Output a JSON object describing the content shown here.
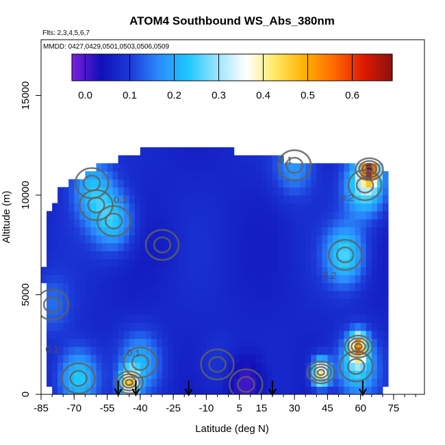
{
  "chart_data": {
    "type": "heatmap",
    "title": "ATOM4 Southbound WS_Abs_380nm",
    "flights_label": "Flts: 2,3,4,5,6,7",
    "dates_label": "MMDD: 0427,0429,0501,0503,0506,0509",
    "xlabel": "Latitude (deg N)",
    "ylabel": "Altitude (m)",
    "xlim": [
      -85,
      89
    ],
    "ylim": [
      0,
      17800
    ],
    "x_ticks": [
      -85,
      -70,
      -55,
      -40,
      -25,
      -10,
      5,
      15,
      30,
      45,
      60,
      75
    ],
    "x_tick_labels": [
      "-85",
      "-70",
      "-55",
      "-40",
      "-25",
      "-10",
      "5",
      "15",
      "30",
      "45",
      "60",
      "75"
    ],
    "y_ticks": [
      0,
      5000,
      10000,
      15000
    ],
    "y_tick_labels": [
      "0",
      "5000",
      "10000",
      "15000"
    ],
    "colorbar": {
      "range": [
        -0.03,
        0.69
      ],
      "tick_values": [
        0.0,
        0.1,
        0.2,
        0.3,
        0.4,
        0.5,
        0.6
      ],
      "tick_labels": [
        "0.0",
        "0.1",
        "0.2",
        "0.3",
        "0.4",
        "0.5",
        "0.6"
      ],
      "colors": [
        "#7b1fe0",
        "#1010b8",
        "#1c3ad8",
        "#2a8cff",
        "#1ec8ff",
        "#9ee4ff",
        "#ffffff",
        "#ffe860",
        "#ffb000",
        "#ff6a00",
        "#e01a00",
        "#8c1010"
      ]
    },
    "contour_labels": [
      {
        "text": "0.2",
        "lat": 54,
        "alt": 9700
      },
      {
        "text": "0.2",
        "lat": 46,
        "alt": 5800
      },
      {
        "text": "0.1",
        "lat": -49,
        "alt": 9600
      },
      {
        "text": "0.1",
        "lat": 26,
        "alt": 11600
      },
      {
        "text": "0.1",
        "lat": -43,
        "alt": 1900
      },
      {
        "text": "0.1",
        "lat": -80,
        "alt": 2100
      }
    ],
    "flight_arrows_lat": [
      -50,
      -42,
      -18,
      20,
      61
    ],
    "hotspots": [
      {
        "lat": 64,
        "alt": 11300,
        "value": 0.55
      },
      {
        "lat": 59,
        "alt": 2400,
        "value": 0.45
      },
      {
        "lat": 42,
        "alt": 1100,
        "value": 0.45
      },
      {
        "lat": -45,
        "alt": 600,
        "value": 0.42
      },
      {
        "lat": -52,
        "alt": 8700,
        "value": 0.22
      },
      {
        "lat": 53,
        "alt": 7000,
        "value": 0.25
      },
      {
        "lat": 62,
        "alt": 10500,
        "value": 0.3
      },
      {
        "lat": 58,
        "alt": 1400,
        "value": 0.25
      },
      {
        "lat": -68,
        "alt": 800,
        "value": 0.25
      },
      {
        "lat": -40,
        "alt": 1600,
        "value": 0.2
      },
      {
        "lat": -62,
        "alt": 10600,
        "value": 0.18
      },
      {
        "lat": 30,
        "alt": 11500,
        "value": 0.18
      },
      {
        "lat": -80,
        "alt": 4500,
        "value": 0.14
      },
      {
        "lat": -5,
        "alt": 1500,
        "value": 0.1
      },
      {
        "lat": 8,
        "alt": 500,
        "value": -0.01
      },
      {
        "lat": -30,
        "alt": 7500,
        "value": 0.06
      },
      {
        "lat": -60,
        "alt": 9500,
        "value": 0.13
      }
    ]
  }
}
